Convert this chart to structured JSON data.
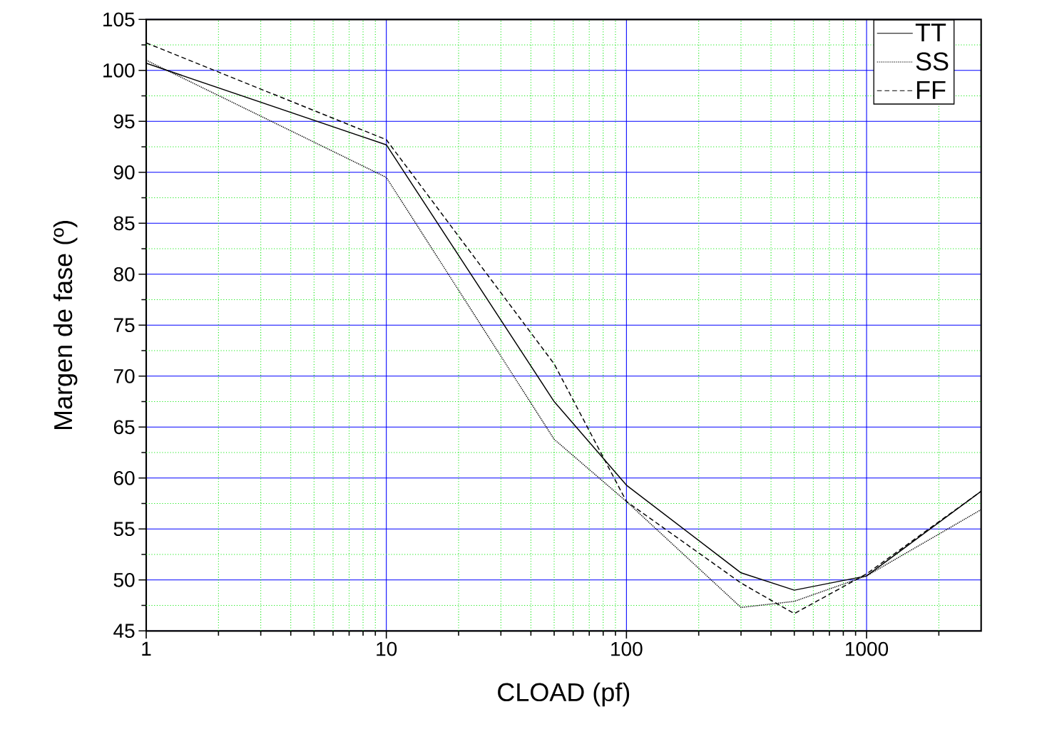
{
  "chart_data": {
    "type": "line",
    "xlabel": "CLOAD (pf)",
    "ylabel": "Margen de fase (º)",
    "log": "x",
    "grid": true,
    "legend": "top right",
    "xlim": [
      1,
      3000
    ],
    "xticks": [
      1,
      {
        "value": 2,
        "label": null
      },
      {
        "value": 3,
        "label": null
      },
      {
        "value": 4,
        "label": null
      },
      {
        "value": 5,
        "label": null
      },
      {
        "value": 6,
        "label": null
      },
      {
        "value": 7,
        "label": null
      },
      {
        "value": 8,
        "label": null
      },
      {
        "value": 9,
        "label": null
      },
      10,
      {
        "value": 20,
        "label": null
      },
      {
        "value": 30,
        "label": null
      },
      {
        "value": 40,
        "label": null
      },
      {
        "value": 50,
        "label": null
      },
      {
        "value": 60,
        "label": null
      },
      {
        "value": 70,
        "label": null
      },
      {
        "value": 80,
        "label": null
      },
      {
        "value": 90,
        "label": null
      },
      100,
      {
        "value": 200,
        "label": null
      },
      {
        "value": 300,
        "label": null
      },
      {
        "value": 400,
        "label": null
      },
      {
        "value": 500,
        "label": null
      },
      {
        "value": 600,
        "label": null
      },
      {
        "value": 700,
        "label": null
      },
      {
        "value": 800,
        "label": null
      },
      {
        "value": 900,
        "label": null
      },
      1000,
      {
        "value": 2000,
        "label": null
      }
    ],
    "ylim": [
      45,
      105
    ],
    "yticks": [
      45,
      {
        "value": 47.5,
        "label": null
      },
      50,
      {
        "value": 52.5,
        "label": null
      },
      55,
      {
        "value": 57.5,
        "label": null
      },
      60,
      {
        "value": 62.5,
        "label": null
      },
      65,
      {
        "value": 67.5,
        "label": null
      },
      70,
      {
        "value": 72.5,
        "label": null
      },
      75,
      {
        "value": 77.5,
        "label": null
      },
      80,
      {
        "value": 82.5,
        "label": null
      },
      85,
      {
        "value": 87.5,
        "label": null
      },
      90,
      {
        "value": 92.5,
        "label": null
      },
      95,
      {
        "value": 97.5,
        "label": null
      },
      100,
      {
        "value": 102.5,
        "label": null
      },
      105
    ],
    "x": [
      1,
      10,
      50,
      100,
      300,
      500,
      1000,
      3000
    ],
    "series": [
      {
        "name": "TT",
        "color": "#000000",
        "line_style": "solid",
        "values": [
          100.7,
          92.7,
          67.5,
          59.3,
          50.7,
          49.0,
          50.4,
          58.7
        ]
      },
      {
        "name": "SS",
        "color": "#000000",
        "line_style": "dotted",
        "values": [
          101.0,
          89.5,
          63.8,
          57.7,
          47.3,
          47.9,
          50.4,
          56.9
        ]
      },
      {
        "name": "FF",
        "color": "#000000",
        "line_style": "dashed",
        "values": [
          102.7,
          93.2,
          71.2,
          57.7,
          49.7,
          46.7,
          50.6,
          58.7
        ]
      }
    ]
  }
}
